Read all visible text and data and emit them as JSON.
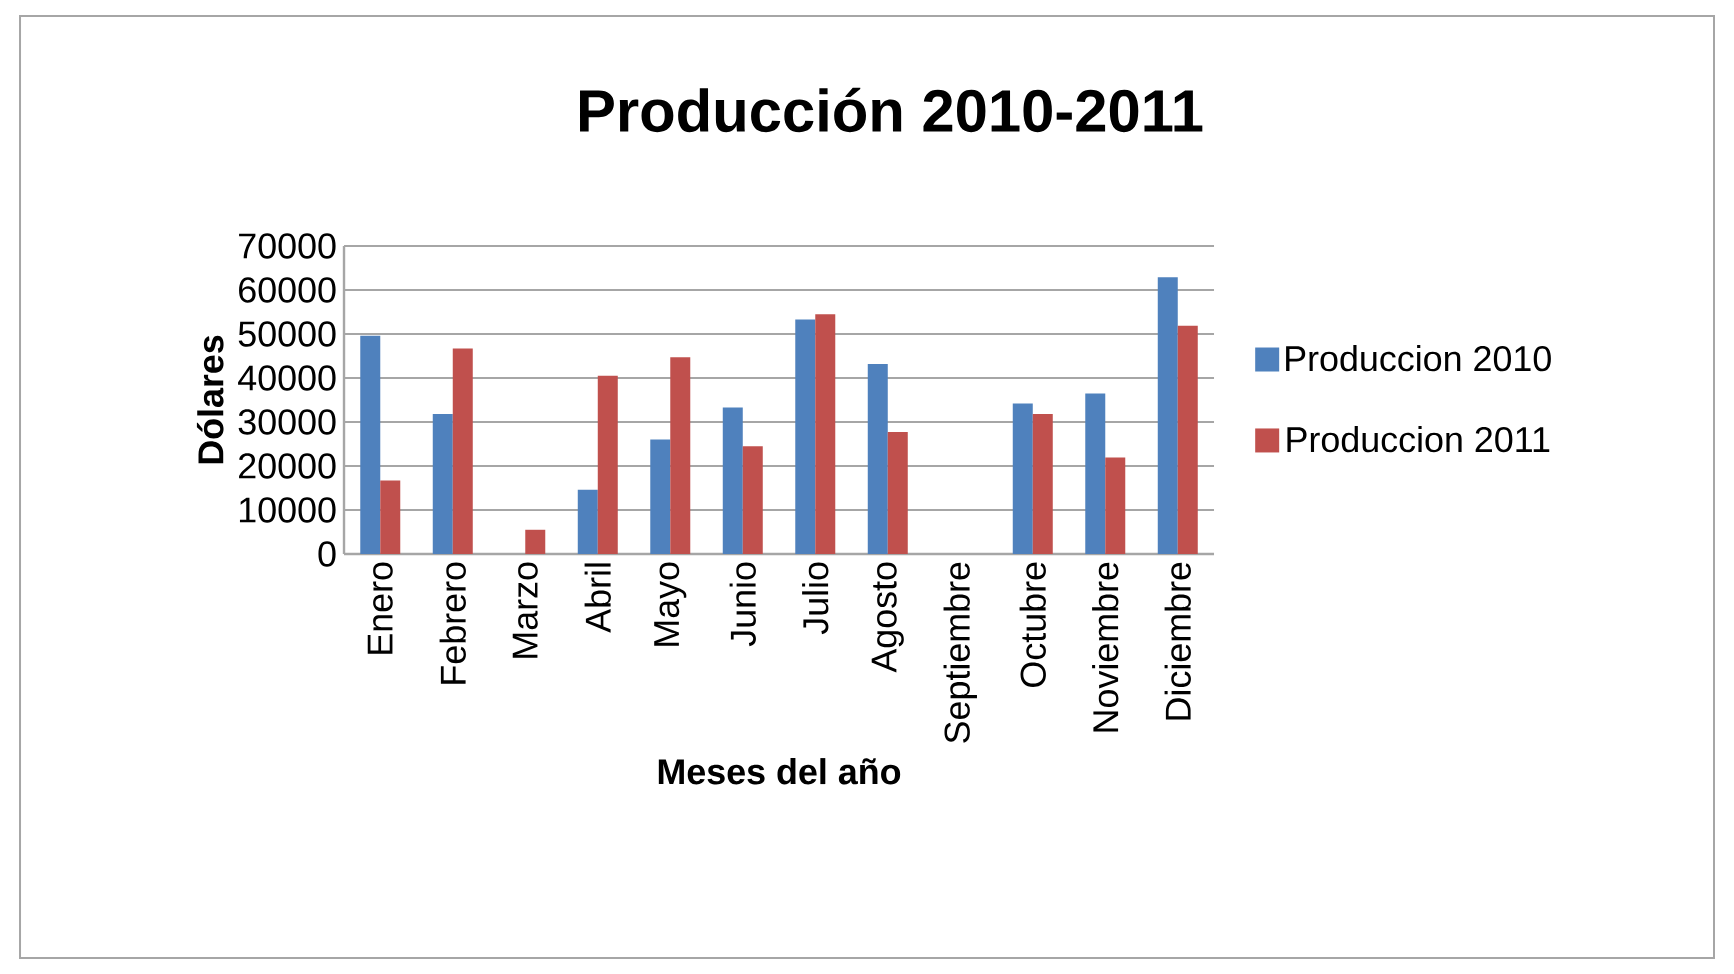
{
  "chart_data": {
    "type": "bar",
    "title": "Producción 2010-2011",
    "xlabel": "Meses del año",
    "ylabel": "Dólares",
    "categories": [
      "Enero",
      "Febrero",
      "Marzo",
      "Abril",
      "Mayo",
      "Junio",
      "Julio",
      "Agosto",
      "Septiembre",
      "Octubre",
      "Noviembre",
      "Diciembre"
    ],
    "series": [
      {
        "name": "Produccion 2010",
        "color": "#4f81bd",
        "values": [
          49600,
          31800,
          null,
          14600,
          26000,
          33300,
          53300,
          43200,
          null,
          34200,
          36500,
          62900
        ]
      },
      {
        "name": "Produccion 2011",
        "color": "#c0504d",
        "values": [
          16700,
          46700,
          5500,
          40500,
          44700,
          24500,
          54500,
          27700,
          null,
          31800,
          21900,
          51900
        ]
      }
    ],
    "ylim": [
      0,
      70000
    ],
    "yticks": [
      0,
      10000,
      20000,
      30000,
      40000,
      50000,
      60000,
      70000
    ],
    "grid": "y",
    "legend": "right"
  }
}
